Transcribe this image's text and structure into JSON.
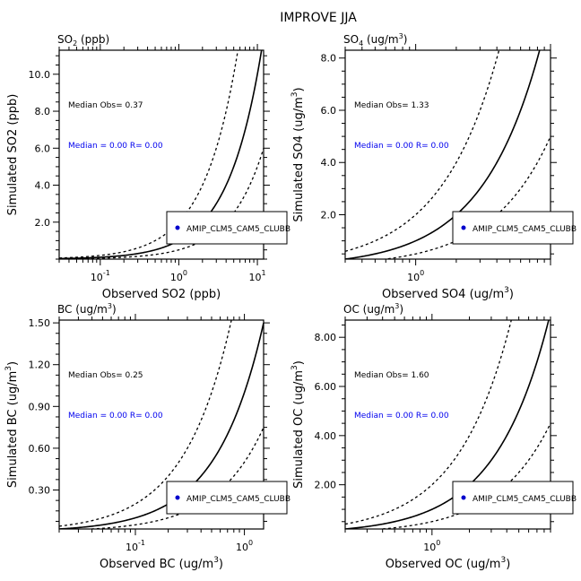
{
  "figure_title": "IMPROVE JJA",
  "chart_data": [
    {
      "type": "scatter",
      "id": "so2",
      "title": "SO2 (ppb)",
      "title_base": "SO",
      "title_sub": "2",
      "title_rest": " (ppb)",
      "xlabel": "Observed SO2 (ppb)",
      "ylabel": "Simulated SO2 (ppb)",
      "xscale": "log",
      "xlim": [
        0.03,
        12
      ],
      "ylim": [
        0,
        11.3
      ],
      "xticks": [
        {
          "value": 0.1,
          "base": "10",
          "exp": "-1"
        },
        {
          "value": 1,
          "base": "10",
          "exp": "0"
        },
        {
          "value": 10,
          "base": "10",
          "exp": "1"
        }
      ],
      "yticks": [
        "2.0",
        "4.0",
        "6.0",
        "8.0",
        "10.0"
      ],
      "ytick_values": [
        2,
        4,
        6,
        8,
        10
      ],
      "median_obs": "Median Obs= 0.37",
      "median_sim": "Median = 0.00 R= 0.00",
      "legend": "AMIP_CLM5_CAM5_CLUBB",
      "series": [],
      "reference_lines": [
        "1:1",
        "2:1",
        "1:2"
      ]
    },
    {
      "type": "scatter",
      "id": "so4",
      "title": "SO4 (ug/m3)",
      "title_base": "SO",
      "title_sub": "4",
      "title_rest": " (ug/m",
      "title_sup": "3",
      "xlabel": "Observed SO4 (ug/m3)",
      "ylabel": "Simulated SO4 (ug/m3)",
      "xscale": "log",
      "xlim": [
        0.3,
        10
      ],
      "ylim": [
        0.3,
        8.3
      ],
      "xticks": [
        {
          "value": 1,
          "base": "10",
          "exp": "0"
        }
      ],
      "yticks": [
        "2.0",
        "4.0",
        "6.0",
        "8.0"
      ],
      "ytick_values": [
        2,
        4,
        6,
        8
      ],
      "median_obs": "Median Obs= 1.33",
      "median_sim": "Median = 0.00 R= 0.00",
      "legend": "AMIP_CLM5_CAM5_CLUBB",
      "series": [],
      "reference_lines": [
        "1:1",
        "2:1",
        "1:2"
      ]
    },
    {
      "type": "scatter",
      "id": "bc",
      "title": "BC (ug/m3)",
      "title_base": "BC (ug/m",
      "title_sup": "3",
      "xlabel": "Observed BC (ug/m3)",
      "ylabel": "Simulated BC (ug/m3)",
      "xscale": "log",
      "xlim": [
        0.02,
        1.5
      ],
      "ylim": [
        0.02,
        1.52
      ],
      "xticks": [
        {
          "value": 0.1,
          "base": "10",
          "exp": "-1"
        },
        {
          "value": 1,
          "base": "10",
          "exp": "0"
        }
      ],
      "yticks": [
        "0.30",
        "0.60",
        "0.90",
        "1.20",
        "1.50"
      ],
      "ytick_values": [
        0.3,
        0.6,
        0.9,
        1.2,
        1.5
      ],
      "median_obs": "Median Obs= 0.25",
      "median_sim": "Median = 0.00 R= 0.00",
      "legend": "AMIP_CLM5_CAM5_CLUBB",
      "series": [],
      "reference_lines": [
        "1:1",
        "2:1",
        "1:2"
      ]
    },
    {
      "type": "scatter",
      "id": "oc",
      "title": "OC (ug/m3)",
      "title_base": "OC (ug/m",
      "title_sup": "3",
      "xlabel": "Observed OC (ug/m3)",
      "ylabel": "Simulated OC (ug/m3)",
      "xscale": "log",
      "xlim": [
        0.2,
        9
      ],
      "ylim": [
        0.2,
        8.7
      ],
      "xticks": [
        {
          "value": 1,
          "base": "10",
          "exp": "0"
        }
      ],
      "yticks": [
        "2.00",
        "4.00",
        "6.00",
        "8.00"
      ],
      "ytick_values": [
        2,
        4,
        6,
        8
      ],
      "median_obs": "Median Obs= 1.60",
      "median_sim": "Median = 0.00 R= 0.00",
      "legend": "AMIP_CLM5_CAM5_CLUBB",
      "series": [],
      "reference_lines": [
        "1:1",
        "2:1",
        "1:2"
      ]
    }
  ],
  "colors": {
    "axes": "#000000",
    "median_sim_text": "#0000ee",
    "legend_marker": "#0000cc"
  }
}
